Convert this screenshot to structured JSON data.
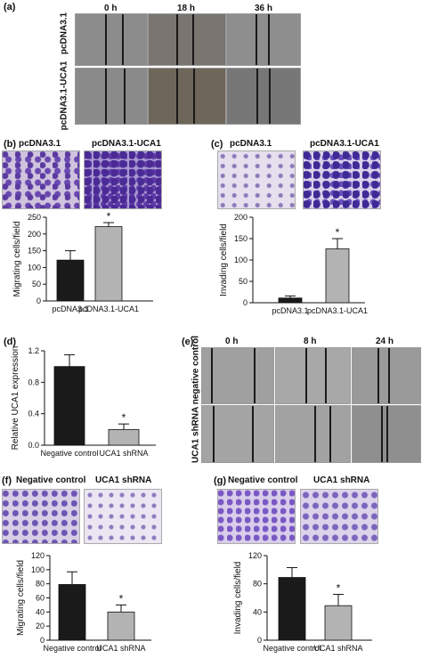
{
  "panels": {
    "a": {
      "label": "(a)",
      "time_labels": [
        "0 h",
        "18 h",
        "36 h"
      ],
      "row_labels": [
        "pcDNA3.1",
        "pcDNA3.1-UCA1"
      ]
    },
    "b": {
      "label": "(b)",
      "image_labels": [
        "pcDNA3.1",
        "pcDNA3.1-UCA1"
      ]
    },
    "c": {
      "label": "(c)",
      "image_labels": [
        "pcDNA3.1",
        "pcDNA3.1-UCA1"
      ]
    },
    "d": {
      "label": "(d)"
    },
    "e": {
      "label": "(e)",
      "time_labels": [
        "0 h",
        "8 h",
        "24 h"
      ],
      "side_label": "UCA1 shRNA negative control"
    },
    "f": {
      "label": "(f)",
      "image_labels": [
        "Negative control",
        "UCA1 shRNA"
      ]
    },
    "g": {
      "label": "(g)",
      "image_labels": [
        "Negative control",
        "UCA1 shRNA"
      ]
    }
  },
  "chart_data": [
    {
      "id": "b",
      "type": "bar",
      "categories": [
        "pcDNA3.1",
        "pcDNA3.1-UCA1"
      ],
      "values": [
        122,
        222
      ],
      "errors": [
        28,
        12
      ],
      "colors": [
        "#1a1a1a",
        "#b3b3b3"
      ],
      "significance": [
        "",
        "*"
      ],
      "ylabel": "Migrating cells/field",
      "ylim": [
        0,
        250
      ],
      "yticks": [
        0,
        50,
        100,
        150,
        200,
        250
      ]
    },
    {
      "id": "c",
      "type": "bar",
      "categories": [
        "pcDNA3.1",
        "pcDNA3.1-UCA1"
      ],
      "values": [
        11,
        126
      ],
      "errors": [
        5,
        24
      ],
      "colors": [
        "#1a1a1a",
        "#b3b3b3"
      ],
      "significance": [
        "",
        "*"
      ],
      "ylabel": "Invading cells/field",
      "ylim": [
        0,
        200
      ],
      "yticks": [
        0,
        50,
        100,
        150,
        200
      ]
    },
    {
      "id": "d",
      "type": "bar",
      "categories": [
        "Negative control",
        "UCA1 shRNA"
      ],
      "values": [
        1.0,
        0.2
      ],
      "errors": [
        0.15,
        0.07
      ],
      "colors": [
        "#1a1a1a",
        "#b3b3b3"
      ],
      "significance": [
        "",
        "*"
      ],
      "ylabel": "Relative UCA1 expression",
      "ylim": [
        0,
        1.2
      ],
      "yticks": [
        "0.0",
        "0.4",
        "0.8",
        "1.2"
      ]
    },
    {
      "id": "f",
      "type": "bar",
      "categories": [
        "Negative control",
        "UCA1 shRNA"
      ],
      "values": [
        79,
        40
      ],
      "errors": [
        18,
        10
      ],
      "colors": [
        "#1a1a1a",
        "#b3b3b3"
      ],
      "significance": [
        "",
        "*"
      ],
      "ylabel": "Migrating cells/field",
      "ylim": [
        0,
        120
      ],
      "yticks": [
        0,
        20,
        40,
        60,
        80,
        100,
        120
      ]
    },
    {
      "id": "g",
      "type": "bar",
      "categories": [
        "Negative control",
        "UCA1 shRNA"
      ],
      "values": [
        89,
        49
      ],
      "errors": [
        14,
        16
      ],
      "colors": [
        "#1a1a1a",
        "#b3b3b3"
      ],
      "significance": [
        "",
        "*"
      ],
      "ylabel": "Invading cells/field",
      "ylim": [
        0,
        120
      ],
      "yticks": [
        0,
        40,
        80,
        120
      ]
    }
  ]
}
